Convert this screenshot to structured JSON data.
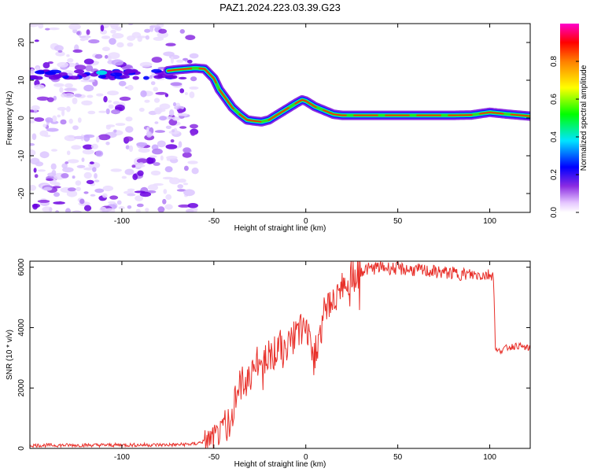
{
  "title": "PAZ1.2024.223.03.39.G23",
  "chart_data": [
    {
      "type": "heatmap",
      "xlabel": "Height of straight line (km)",
      "ylabel": "Frequency (Hz)",
      "xlim": [
        -150,
        122
      ],
      "ylim": [
        -25,
        25
      ],
      "xticks": [
        -100,
        -50,
        0,
        50,
        100
      ],
      "yticks": [
        -20,
        -10,
        0,
        10,
        20
      ],
      "ridge_frequency": {
        "x": [
          -75,
          -70,
          -65,
          -60,
          -55,
          -50,
          -47,
          -44,
          -40,
          -36,
          -32,
          -28,
          -24,
          -20,
          -15,
          -10,
          -5,
          -2,
          0,
          5,
          10,
          15,
          20,
          30,
          40,
          50,
          60,
          70,
          80,
          90,
          100,
          110,
          122
        ],
        "y": [
          12.5,
          12.8,
          13.0,
          13.2,
          13.0,
          10.5,
          7.5,
          5.5,
          2.8,
          1.0,
          -0.5,
          -0.8,
          -1.0,
          -0.5,
          1.0,
          2.5,
          4.0,
          4.8,
          4.5,
          3.0,
          2.0,
          1.0,
          0.7,
          0.7,
          0.7,
          0.7,
          0.7,
          0.7,
          0.7,
          0.8,
          1.5,
          1.0,
          0.5
        ]
      },
      "noise_region": [
        -150,
        -60
      ],
      "colorbar": {
        "label": "Normalized spectral amplitude",
        "range": [
          0,
          1
        ],
        "ticks": [
          0.0,
          0.2,
          0.4,
          0.6,
          0.8
        ]
      }
    },
    {
      "type": "line",
      "xlabel": "Height of straight line (km)",
      "ylabel": "SNR (10 * v/v)",
      "xlim": [
        -150,
        122
      ],
      "ylim": [
        0,
        6200
      ],
      "xticks": [
        -100,
        -50,
        0,
        50,
        100
      ],
      "yticks": [
        0,
        2000,
        4000,
        6000
      ],
      "color": "#e8302a",
      "series": [
        {
          "x": [
            -150,
            -110,
            -70,
            -60,
            -52,
            -46,
            -42,
            -40,
            -38,
            -35,
            -30,
            -25,
            -20,
            -15,
            -10,
            -5,
            -2,
            0,
            2,
            5,
            8,
            10,
            15,
            20,
            25,
            30,
            40,
            50,
            60,
            70,
            80,
            90,
            100,
            102,
            103,
            104,
            110,
            115,
            122
          ],
          "y": [
            100,
            110,
            120,
            150,
            300,
            500,
            900,
            1200,
            1800,
            2100,
            2500,
            2900,
            3100,
            3300,
            3500,
            3700,
            3900,
            4100,
            3600,
            3200,
            3800,
            4500,
            5000,
            5400,
            5700,
            5900,
            6000,
            5950,
            5900,
            5850,
            5800,
            5750,
            5750,
            5800,
            3400,
            3200,
            3350,
            3400,
            3300
          ]
        }
      ]
    }
  ]
}
